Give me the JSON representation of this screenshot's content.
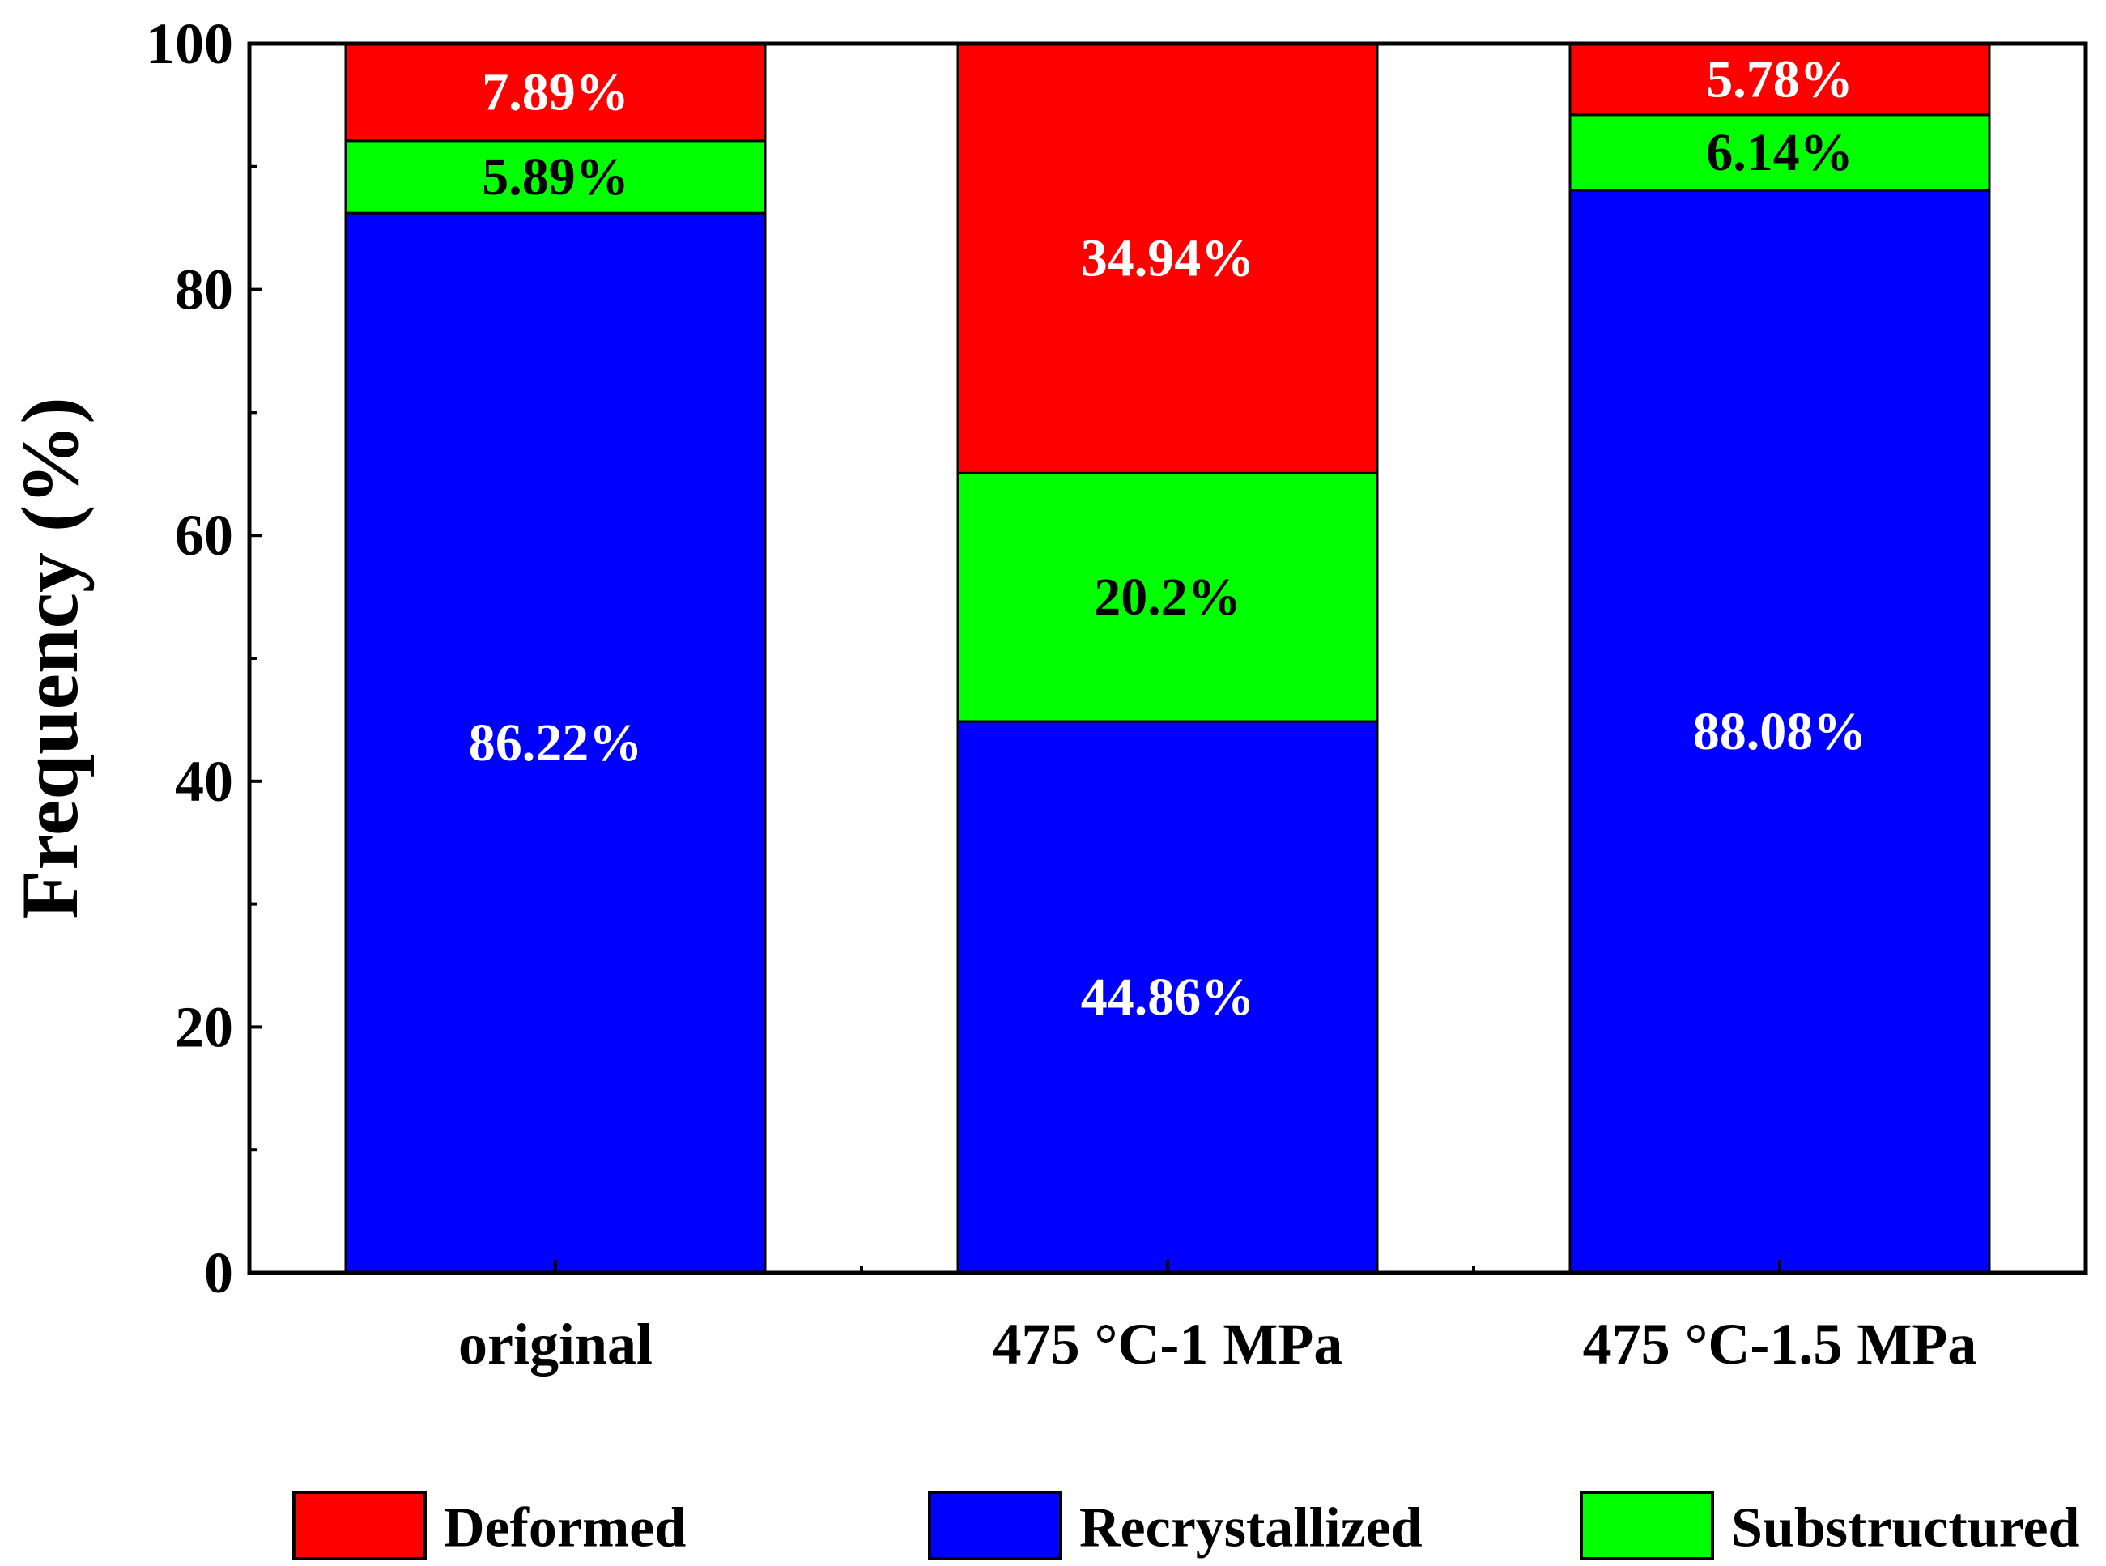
{
  "chart_data": {
    "type": "bar",
    "stacked": true,
    "title": "",
    "xlabel": "",
    "ylabel": "Frequency (%)",
    "ylim": [
      0,
      100
    ],
    "yticks": [
      0,
      20,
      40,
      60,
      80,
      100
    ],
    "categories": [
      "original",
      "475 °C-1 MPa",
      "475 °C-1.5 MPa"
    ],
    "series": [
      {
        "name": "Recrystallized",
        "color": "#0000ff",
        "label_color": "#ffffff",
        "values": [
          86.22,
          44.86,
          88.08
        ],
        "labels": [
          "86.22%",
          "44.86%",
          "88.08%"
        ]
      },
      {
        "name": "Substructured",
        "color": "#00ff00",
        "label_color": "#000000",
        "values": [
          5.89,
          20.2,
          6.14
        ],
        "labels": [
          "5.89%",
          "20.2%",
          "6.14%"
        ]
      },
      {
        "name": "Deformed",
        "color": "#ff0000",
        "label_color": "#ffffff",
        "values": [
          7.89,
          34.94,
          5.78
        ],
        "labels": [
          "7.89%",
          "34.94%",
          "5.78%"
        ]
      }
    ],
    "legend": {
      "position": "bottom",
      "order": [
        "Deformed",
        "Recrystallized",
        "Substructured"
      ]
    }
  }
}
